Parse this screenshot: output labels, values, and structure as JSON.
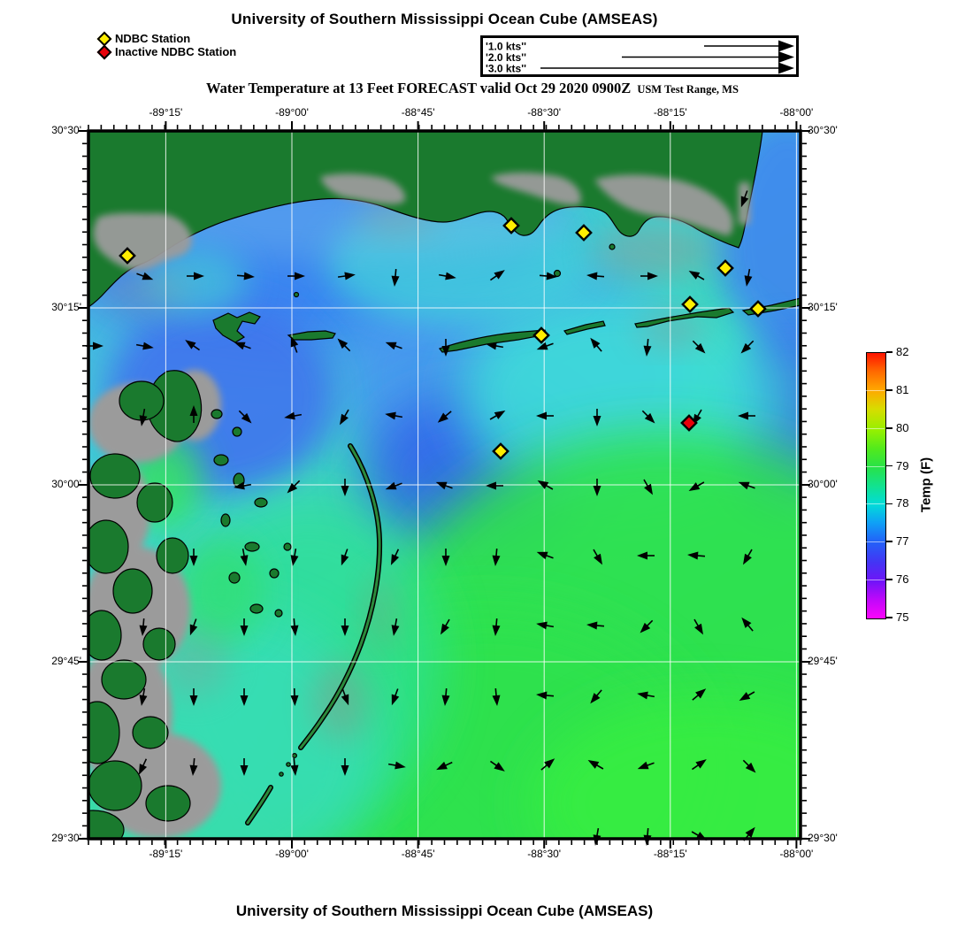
{
  "header": {
    "title": "University of Southern Mississippi Ocean Cube (AMSEAS)",
    "legend": [
      {
        "label": "NDBC Station",
        "color": "#ffee00"
      },
      {
        "label": "Inactive NDBC Station",
        "color": "#e8000a"
      }
    ],
    "scale_box": {
      "rows": [
        {
          "label": "'1.0 kts''",
          "line_start": 250
        },
        {
          "label": "'2.0 kts''",
          "line_start": 157
        },
        {
          "label": "'3.0 kts''",
          "line_start": 65
        }
      ],
      "line_end": 334,
      "tip": 352
    },
    "subtitle_main": "Water Temperature at 13 Feet FORECAST valid Oct 29 2020 0900Z",
    "subtitle_small": "USM Test Range, MS"
  },
  "footer": {
    "title": "University of Southern Mississippi Ocean Cube (AMSEAS)"
  },
  "map": {
    "x_tick_labels": [
      "-89°15'",
      "-89°00'",
      "-88°45'",
      "-88°30'",
      "-88°15'",
      "-88°00'"
    ],
    "x_ticks": [
      87.4,
      230,
      372.6,
      515.2,
      657.8,
      800.4
    ],
    "y_tick_labels": [
      "30°30'",
      "30°15'",
      "30°00'",
      "29°45'",
      "29°30'"
    ],
    "y_ticks": [
      0,
      200,
      400,
      600,
      800
    ],
    "colors": {
      "land": "#1a7a2e",
      "shallow": "#9b9b9b",
      "vector": "#000000",
      "station_active": "#ffee00",
      "station_inactive": "#e8000a"
    },
    "stations_active": [
      [
        44,
        141
      ],
      [
        478,
        107
      ],
      [
        560,
        115
      ],
      [
        720,
        155
      ],
      [
        680,
        196
      ],
      [
        757,
        201
      ],
      [
        512,
        231
      ],
      [
        466,
        362
      ]
    ],
    "stations_inactive": [
      [
        679,
        330
      ]
    ],
    "arrows": [
      [
        62,
        164,
        20
      ],
      [
        119,
        164,
        0
      ],
      [
        176,
        164,
        5
      ],
      [
        233,
        164,
        0
      ],
      [
        290,
        164,
        -8
      ],
      [
        347,
        164,
        95
      ],
      [
        404,
        164,
        10
      ],
      [
        461,
        164,
        -35
      ],
      [
        518,
        164,
        5
      ],
      [
        575,
        164,
        185
      ],
      [
        632,
        164,
        0
      ],
      [
        689,
        164,
        210
      ],
      [
        746,
        164,
        100
      ],
      [
        742,
        75,
        110
      ],
      [
        5,
        243,
        0
      ],
      [
        62,
        243,
        10
      ],
      [
        119,
        243,
        215
      ],
      [
        176,
        243,
        200
      ],
      [
        233,
        243,
        250
      ],
      [
        290,
        243,
        225
      ],
      [
        347,
        243,
        200
      ],
      [
        404,
        243,
        90
      ],
      [
        461,
        243,
        190
      ],
      [
        518,
        243,
        160
      ],
      [
        575,
        243,
        230
      ],
      [
        632,
        243,
        95
      ],
      [
        689,
        243,
        45
      ],
      [
        746,
        243,
        135
      ],
      [
        62,
        322,
        100
      ],
      [
        119,
        322,
        -90
      ],
      [
        176,
        322,
        45
      ],
      [
        233,
        322,
        170
      ],
      [
        290,
        322,
        120
      ],
      [
        347,
        322,
        190
      ],
      [
        404,
        322,
        140
      ],
      [
        461,
        322,
        -30
      ],
      [
        518,
        322,
        180
      ],
      [
        575,
        322,
        90
      ],
      [
        632,
        322,
        45
      ],
      [
        689,
        322,
        120
      ],
      [
        746,
        322,
        180
      ],
      [
        176,
        401,
        170
      ],
      [
        233,
        401,
        135
      ],
      [
        290,
        401,
        90
      ],
      [
        347,
        401,
        160
      ],
      [
        404,
        401,
        200
      ],
      [
        461,
        401,
        180
      ],
      [
        518,
        401,
        210
      ],
      [
        575,
        401,
        90
      ],
      [
        632,
        401,
        60
      ],
      [
        689,
        401,
        150
      ],
      [
        746,
        401,
        200
      ],
      [
        119,
        480,
        90
      ],
      [
        176,
        480,
        80
      ],
      [
        233,
        480,
        100
      ],
      [
        290,
        480,
        110
      ],
      [
        347,
        480,
        115
      ],
      [
        404,
        480,
        90
      ],
      [
        461,
        480,
        95
      ],
      [
        518,
        480,
        200
      ],
      [
        575,
        480,
        60
      ],
      [
        632,
        480,
        180
      ],
      [
        689,
        480,
        185
      ],
      [
        746,
        480,
        120
      ],
      [
        62,
        559,
        95
      ],
      [
        119,
        559,
        110
      ],
      [
        176,
        559,
        90
      ],
      [
        233,
        559,
        85
      ],
      [
        290,
        559,
        90
      ],
      [
        347,
        559,
        100
      ],
      [
        404,
        559,
        120
      ],
      [
        461,
        559,
        95
      ],
      [
        518,
        559,
        190
      ],
      [
        575,
        559,
        185
      ],
      [
        632,
        559,
        135
      ],
      [
        689,
        559,
        60
      ],
      [
        746,
        559,
        230
      ],
      [
        62,
        638,
        100
      ],
      [
        119,
        638,
        90
      ],
      [
        176,
        638,
        90
      ],
      [
        233,
        638,
        88
      ],
      [
        290,
        638,
        70
      ],
      [
        347,
        638,
        110
      ],
      [
        404,
        638,
        95
      ],
      [
        461,
        638,
        85
      ],
      [
        518,
        638,
        185
      ],
      [
        575,
        638,
        130
      ],
      [
        632,
        638,
        190
      ],
      [
        689,
        638,
        -40
      ],
      [
        746,
        638,
        150
      ],
      [
        62,
        717,
        115
      ],
      [
        119,
        717,
        95
      ],
      [
        176,
        717,
        90
      ],
      [
        233,
        717,
        85
      ],
      [
        290,
        717,
        90
      ],
      [
        347,
        717,
        10
      ],
      [
        404,
        717,
        155
      ],
      [
        461,
        717,
        35
      ],
      [
        518,
        717,
        -40
      ],
      [
        575,
        717,
        210
      ],
      [
        632,
        717,
        160
      ],
      [
        689,
        717,
        -35
      ],
      [
        746,
        717,
        45
      ],
      [
        575,
        796,
        100
      ],
      [
        632,
        796,
        95
      ],
      [
        689,
        796,
        30
      ],
      [
        746,
        796,
        -50
      ]
    ]
  },
  "colorbar": {
    "title": "Temp (F)",
    "tick_labels": [
      "82",
      "81",
      "80",
      "79",
      "78",
      "77",
      "76",
      "75"
    ],
    "min": 75,
    "max": 82,
    "stops": [
      [
        "#ff1400",
        0
      ],
      [
        "#ff6a00",
        7
      ],
      [
        "#ffa800",
        14
      ],
      [
        "#d8dc00",
        21
      ],
      [
        "#96f000",
        29
      ],
      [
        "#52ea1c",
        36
      ],
      [
        "#28e248",
        43
      ],
      [
        "#12e28e",
        50
      ],
      [
        "#02dcd8",
        57
      ],
      [
        "#0fa0f6",
        64
      ],
      [
        "#2262f8",
        71
      ],
      [
        "#4434f4",
        79
      ],
      [
        "#7014f8",
        86
      ],
      [
        "#c008fa",
        93
      ],
      [
        "#fb06fb",
        100
      ]
    ]
  }
}
